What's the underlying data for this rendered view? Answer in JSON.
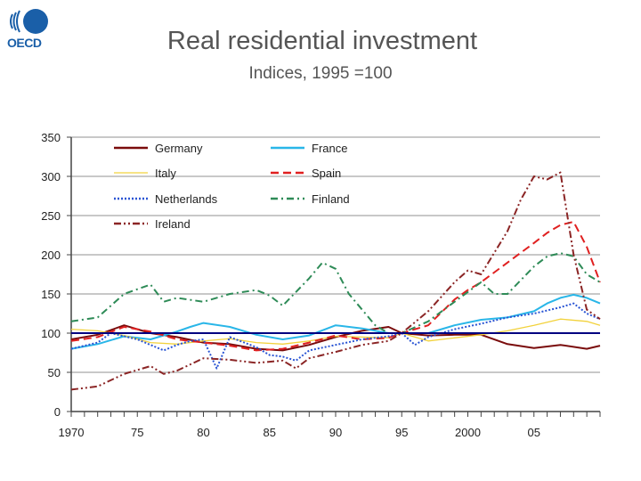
{
  "header": {
    "logo_text": "OECD",
    "title": "Real residential investment",
    "subtitle": "Indices, 1995 =100"
  },
  "colors": {
    "germany": "#7a0c0c",
    "france": "#29b6e8",
    "italy": "#f2d23c",
    "spain": "#e02020",
    "netherlands": "#2a55d4",
    "finland": "#2e8b57",
    "ireland": "#8b2525",
    "reference_line": "#000080"
  },
  "chart_data": {
    "type": "line",
    "title": "Real residential investment",
    "subtitle": "Indices, 1995 =100",
    "xlabel": "",
    "ylabel": "",
    "xlim": [
      1970,
      2010
    ],
    "ylim": [
      0,
      350
    ],
    "y_ticks": [
      0,
      50,
      100,
      150,
      200,
      250,
      300,
      350
    ],
    "x_ticks": [
      {
        "value": 1970,
        "label": "1970"
      },
      {
        "value": 1975,
        "label": "75"
      },
      {
        "value": 1980,
        "label": "80"
      },
      {
        "value": 1985,
        "label": "85"
      },
      {
        "value": 1990,
        "label": "90"
      },
      {
        "value": 1995,
        "label": "95"
      },
      {
        "value": 2000,
        "label": "2000"
      },
      {
        "value": 2005,
        "label": "05"
      }
    ],
    "grid": "horizontal",
    "legend_position": "top-left",
    "reference_line": 100,
    "series": [
      {
        "name": "Germany",
        "key": "germany",
        "dash": "solid",
        "x": [
          1970,
          1972,
          1974,
          1976,
          1978,
          1980,
          1982,
          1984,
          1986,
          1988,
          1990,
          1992,
          1994,
          1995,
          1997,
          1999,
          2001,
          2003,
          2005,
          2007,
          2009,
          2010
        ],
        "y": [
          92,
          98,
          110,
          100,
          95,
          88,
          86,
          80,
          78,
          85,
          95,
          103,
          108,
          100,
          97,
          98,
          98,
          86,
          81,
          85,
          80,
          84
        ]
      },
      {
        "name": "France",
        "key": "france",
        "dash": "solid",
        "x": [
          1970,
          1972,
          1974,
          1976,
          1978,
          1979,
          1980,
          1982,
          1984,
          1986,
          1988,
          1990,
          1992,
          1994,
          1995,
          1997,
          1999,
          2001,
          2003,
          2005,
          2006,
          2007,
          2008,
          2009,
          2010
        ],
        "y": [
          80,
          86,
          96,
          92,
          102,
          108,
          113,
          108,
          98,
          92,
          97,
          110,
          106,
          100,
          100,
          100,
          110,
          117,
          120,
          128,
          138,
          145,
          149,
          145,
          138
        ]
      },
      {
        "name": "Italy",
        "key": "italy",
        "dash": "solid",
        "x": [
          1970,
          1972,
          1974,
          1976,
          1978,
          1980,
          1982,
          1984,
          1986,
          1988,
          1990,
          1992,
          1994,
          1995,
          1997,
          1999,
          2001,
          2003,
          2005,
          2007,
          2009,
          2010
        ],
        "y": [
          105,
          103,
          97,
          88,
          86,
          90,
          93,
          88,
          86,
          90,
          96,
          95,
          94,
          100,
          90,
          94,
          98,
          103,
          110,
          118,
          115,
          110
        ]
      },
      {
        "name": "Spain",
        "key": "spain",
        "dash": "dash",
        "x": [
          1970,
          1972,
          1974,
          1976,
          1978,
          1980,
          1982,
          1984,
          1986,
          1988,
          1990,
          1992,
          1994,
          1995,
          1997,
          1999,
          2000,
          2001,
          2003,
          2005,
          2006,
          2007,
          2008,
          2009,
          2010
        ],
        "y": [
          90,
          95,
          108,
          102,
          92,
          88,
          84,
          78,
          80,
          88,
          97,
          92,
          94,
          100,
          110,
          143,
          155,
          165,
          190,
          215,
          228,
          238,
          242,
          210,
          165
        ]
      },
      {
        "name": "Netherlands",
        "key": "netherlands",
        "dash": "dot",
        "x": [
          1970,
          1972,
          1973,
          1975,
          1977,
          1978,
          1979,
          1980,
          1981,
          1982,
          1984,
          1985,
          1986,
          1987,
          1988,
          1990,
          1992,
          1994,
          1995,
          1996,
          1997,
          1999,
          2001,
          2003,
          2005,
          2007,
          2008,
          2009,
          2010
        ],
        "y": [
          80,
          88,
          100,
          92,
          78,
          85,
          90,
          92,
          55,
          95,
          82,
          72,
          70,
          65,
          78,
          85,
          92,
          96,
          100,
          85,
          95,
          105,
          112,
          120,
          125,
          133,
          138,
          125,
          118
        ]
      },
      {
        "name": "Finland",
        "key": "finland",
        "dash": "dashdot",
        "x": [
          1970,
          1972,
          1974,
          1976,
          1977,
          1978,
          1980,
          1982,
          1984,
          1985,
          1986,
          1988,
          1989,
          1990,
          1991,
          1993,
          1994,
          1995,
          1997,
          1999,
          2001,
          2002,
          2003,
          2005,
          2006,
          2007,
          2008,
          2009,
          2010
        ],
        "y": [
          115,
          120,
          150,
          162,
          140,
          145,
          140,
          150,
          155,
          148,
          135,
          170,
          190,
          182,
          150,
          110,
          100,
          100,
          115,
          140,
          165,
          150,
          150,
          185,
          198,
          202,
          198,
          175,
          165
        ]
      },
      {
        "name": "Ireland",
        "key": "ireland",
        "dash": "dashdotdot",
        "x": [
          1970,
          1972,
          1974,
          1976,
          1977,
          1978,
          1980,
          1982,
          1984,
          1986,
          1987,
          1988,
          1990,
          1992,
          1994,
          1995,
          1997,
          1999,
          2000,
          2001,
          2003,
          2004,
          2005,
          2006,
          2007,
          2008,
          2009,
          2010
        ],
        "y": [
          28,
          32,
          48,
          58,
          48,
          52,
          68,
          66,
          62,
          65,
          55,
          68,
          76,
          85,
          90,
          100,
          128,
          165,
          180,
          175,
          230,
          270,
          300,
          296,
          305,
          200,
          130,
          118
        ]
      }
    ]
  }
}
